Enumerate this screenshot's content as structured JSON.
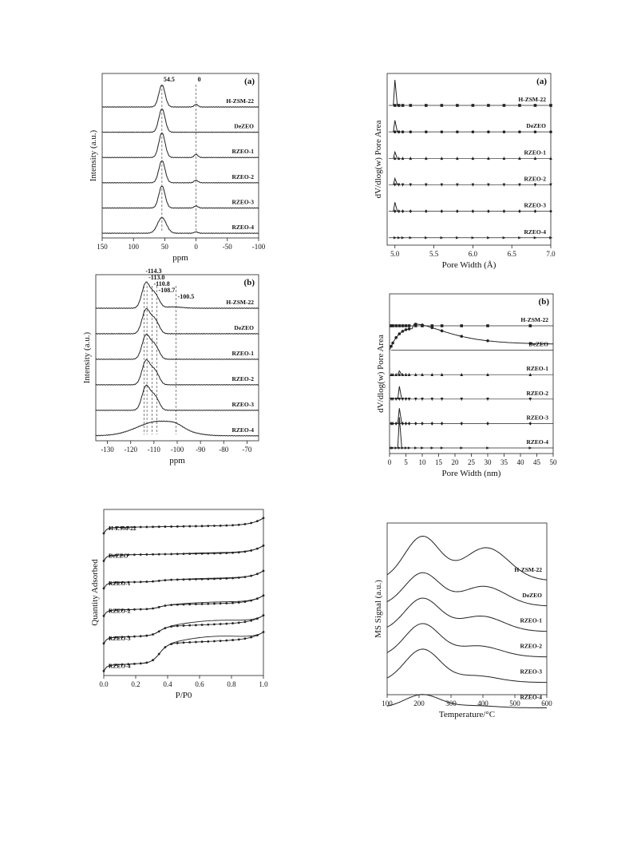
{
  "figure": {
    "panels": [
      {
        "id": "nmr-al",
        "type": "line",
        "panel_label": "(a)",
        "xlabel": "ppm",
        "ylabel": "Intensity (a.u.)",
        "x_reversed": true,
        "xlim": [
          150,
          -100
        ],
        "xticks": [
          "150",
          "100",
          "50",
          "0",
          "-50",
          "-100"
        ],
        "xtick_values": [
          150,
          100,
          50,
          0,
          -50,
          -100
        ],
        "annotations": [
          {
            "text": "54.5",
            "x": 54.5
          },
          {
            "text": "0",
            "x": 0
          }
        ],
        "dashed_lines": [
          54.5,
          0
        ],
        "series": [
          {
            "name": "H-ZSM-22",
            "peaks": [
              {
                "center": 54.5,
                "height": 0.85,
                "width": 5
              },
              {
                "center": 0,
                "height": 0.1,
                "width": 3
              }
            ]
          },
          {
            "name": "DeZEO",
            "peaks": [
              {
                "center": 54.5,
                "height": 0.9,
                "width": 5
              }
            ]
          },
          {
            "name": "RZEO-1",
            "peaks": [
              {
                "center": 54.5,
                "height": 0.95,
                "width": 5
              },
              {
                "center": 0,
                "height": 0.12,
                "width": 3
              }
            ]
          },
          {
            "name": "RZEO-2",
            "peaks": [
              {
                "center": 54.5,
                "height": 0.85,
                "width": 5
              },
              {
                "center": 0,
                "height": 0.1,
                "width": 3
              }
            ]
          },
          {
            "name": "RZEO-3",
            "peaks": [
              {
                "center": 54.5,
                "height": 0.85,
                "width": 5
              },
              {
                "center": 0,
                "height": 0.08,
                "width": 3
              }
            ]
          },
          {
            "name": "RZEO-4",
            "peaks": [
              {
                "center": 54.5,
                "height": 0.6,
                "width": 7
              },
              {
                "center": 0,
                "height": 0.05,
                "width": 3
              }
            ]
          }
        ]
      },
      {
        "id": "nmr-si",
        "type": "line",
        "panel_label": "(b)",
        "xlabel": "ppm",
        "ylabel": "Intensity (a.u.)",
        "x_reversed": true,
        "xlim": [
          -135,
          -65
        ],
        "xticks": [
          "-130",
          "-120",
          "-110",
          "-100",
          "-90",
          "-80",
          "-70"
        ],
        "xtick_values": [
          -130,
          -120,
          -110,
          -100,
          -90,
          -80,
          -70
        ],
        "annotations": [
          {
            "text": "-114.3",
            "x": -114.3
          },
          {
            "text": "-113.0",
            "x": -113.0
          },
          {
            "text": "-110.8",
            "x": -110.8
          },
          {
            "text": "-108.7",
            "x": -108.7
          },
          {
            "text": "-100.5",
            "x": -100.5
          }
        ],
        "dashed_lines": [
          -114.3,
          -113.0,
          -110.8,
          -108.7,
          -100.5
        ],
        "series": [
          {
            "name": "H-ZSM-22",
            "peaks": [
              {
                "center": -114.3,
                "height": 0.55,
                "width": 1.5
              },
              {
                "center": -113.0,
                "height": 0.45,
                "width": 1.3
              },
              {
                "center": -110.8,
                "height": 0.45,
                "width": 1.5
              },
              {
                "center": -108.7,
                "height": 0.3,
                "width": 1.5
              },
              {
                "center": -102,
                "height": 0.05,
                "width": 4
              }
            ]
          },
          {
            "name": "DeZEO",
            "peaks": [
              {
                "center": -114.3,
                "height": 0.5,
                "width": 1.5
              },
              {
                "center": -113.0,
                "height": 0.45,
                "width": 1.3
              },
              {
                "center": -110.8,
                "height": 0.45,
                "width": 1.5
              },
              {
                "center": -108.7,
                "height": 0.3,
                "width": 1.5
              }
            ]
          },
          {
            "name": "RZEO-1",
            "peaks": [
              {
                "center": -114.3,
                "height": 0.5,
                "width": 1.5
              },
              {
                "center": -113.0,
                "height": 0.45,
                "width": 1.3
              },
              {
                "center": -110.8,
                "height": 0.45,
                "width": 1.5
              },
              {
                "center": -108.7,
                "height": 0.3,
                "width": 1.5
              }
            ]
          },
          {
            "name": "RZEO-2",
            "peaks": [
              {
                "center": -114.3,
                "height": 0.5,
                "width": 1.5
              },
              {
                "center": -113.0,
                "height": 0.45,
                "width": 1.3
              },
              {
                "center": -110.8,
                "height": 0.45,
                "width": 1.5
              },
              {
                "center": -108.7,
                "height": 0.3,
                "width": 1.5
              }
            ]
          },
          {
            "name": "RZEO-3",
            "peaks": [
              {
                "center": -114.3,
                "height": 0.5,
                "width": 1.5
              },
              {
                "center": -113.0,
                "height": 0.45,
                "width": 1.3
              },
              {
                "center": -110.8,
                "height": 0.45,
                "width": 1.5
              },
              {
                "center": -108.7,
                "height": 0.3,
                "width": 1.5
              }
            ]
          },
          {
            "name": "RZEO-4",
            "peaks": [
              {
                "center": -108,
                "height": 0.55,
                "width": 9
              },
              {
                "center": -100.5,
                "height": 0.1,
                "width": 3
              }
            ]
          }
        ]
      },
      {
        "id": "isotherm",
        "type": "line",
        "panel_label": "",
        "xlabel": "P/P0",
        "ylabel": "Quantity Adsorbed",
        "xlim": [
          0,
          1
        ],
        "xticks": [
          "0.0",
          "0.2",
          "0.4",
          "0.6",
          "0.8",
          "1.0"
        ],
        "xtick_values": [
          0,
          0.2,
          0.4,
          0.6,
          0.8,
          1.0
        ],
        "series": [
          {
            "name": "H-ZSM-22",
            "step": 0.0,
            "hysteresis": 0.0,
            "slope": 0.08
          },
          {
            "name": "DeZEO",
            "step": 0.0,
            "hysteresis": 0.02,
            "slope": 0.08
          },
          {
            "name": "RZEO-1",
            "step": 0.05,
            "hysteresis": 0.02,
            "slope": 0.1
          },
          {
            "name": "RZEO-2",
            "step": 0.12,
            "hysteresis": 0.05,
            "slope": 0.12
          },
          {
            "name": "RZEO-3",
            "step": 0.28,
            "hysteresis": 0.12,
            "slope": 0.2
          },
          {
            "name": "RZEO-4",
            "step": 0.6,
            "hysteresis": 0.15,
            "slope": 0.22
          }
        ]
      },
      {
        "id": "pore-a",
        "type": "scatter",
        "panel_label": "(a)",
        "xlabel": "Pore Width (Å)",
        "ylabel": "dV/dlog(w) Pore Area",
        "xlim": [
          4.9,
          7.0
        ],
        "xticks": [
          "5.0",
          "5.5",
          "6.0",
          "6.5",
          "7.0"
        ],
        "xtick_values": [
          5.0,
          5.5,
          6.0,
          6.5,
          7.0
        ],
        "series": [
          {
            "name": "H-ZSM-22",
            "marker": "square",
            "spike": 1.0
          },
          {
            "name": "DeZEO",
            "marker": "circle",
            "spike": 0.45
          },
          {
            "name": "RZEO-1",
            "marker": "triangle",
            "spike": 0.25
          },
          {
            "name": "RZEO-2",
            "marker": "triangle-down",
            "spike": 0.25
          },
          {
            "name": "RZEO-3",
            "marker": "diamond",
            "spike": 0.35
          },
          {
            "name": "RZEO-4",
            "marker": "triangle-right",
            "spike": 0.0
          }
        ]
      },
      {
        "id": "pore-b",
        "type": "scatter",
        "panel_label": "(b)",
        "xlabel": "Pore Width (nm)",
        "ylabel": "dV/dlog(w) Pore Area",
        "xlim": [
          0,
          50
        ],
        "xticks": [
          "0",
          "5",
          "10",
          "15",
          "20",
          "25",
          "30",
          "35",
          "40",
          "45",
          "50"
        ],
        "xtick_values": [
          0,
          5,
          10,
          15,
          20,
          25,
          30,
          35,
          40,
          45,
          50
        ],
        "series": [
          {
            "name": "H-ZSM-22",
            "marker": "square",
            "spike": 0.0,
            "hump": 0.0
          },
          {
            "name": "DeZEO",
            "marker": "circle",
            "spike": 0.0,
            "hump": 1.0
          },
          {
            "name": "RZEO-1",
            "marker": "triangle",
            "spike": 0.15,
            "hump": 0.0
          },
          {
            "name": "RZEO-2",
            "marker": "triangle-down",
            "spike": 0.5,
            "hump": 0.0
          },
          {
            "name": "RZEO-3",
            "marker": "diamond",
            "spike": 0.6,
            "hump": 0.0
          },
          {
            "name": "RZEO-4",
            "marker": "triangle-right",
            "spike": 1.2,
            "hump": 0.0
          }
        ]
      },
      {
        "id": "tpd",
        "type": "line",
        "panel_label": "",
        "xlabel": "Temperature/°C",
        "ylabel": "MS Signal (a.u.)",
        "xlim": [
          100,
          600
        ],
        "xticks": [
          "100",
          "200",
          "300",
          "400",
          "500",
          "600"
        ],
        "xtick_values": [
          100,
          200,
          300,
          400,
          500,
          600
        ],
        "series": [
          {
            "name": "H-ZSM-22",
            "low_peak": 1.0,
            "high_peak": 0.75
          },
          {
            "name": "DeZEO",
            "low_peak": 0.75,
            "high_peak": 0.45
          },
          {
            "name": "RZEO-1",
            "low_peak": 0.75,
            "high_peak": 0.35
          },
          {
            "name": "RZEO-2",
            "low_peak": 0.75,
            "high_peak": 0.25
          },
          {
            "name": "RZEO-3",
            "low_peak": 0.75,
            "high_peak": 0.15
          },
          {
            "name": "RZEO-4",
            "low_peak": 0.3,
            "high_peak": 0.05
          }
        ]
      }
    ]
  },
  "chart_data": [
    {
      "type": "line",
      "title": "(a)",
      "xlabel": "ppm",
      "ylabel": "Intensity (a.u.)",
      "xlim": [
        150,
        -100
      ],
      "series": [
        {
          "name": "H-ZSM-22"
        },
        {
          "name": "DeZEO"
        },
        {
          "name": "RZEO-1"
        },
        {
          "name": "RZEO-2"
        },
        {
          "name": "RZEO-3"
        },
        {
          "name": "RZEO-4"
        }
      ],
      "annotations": [
        "54.5",
        "0"
      ]
    },
    {
      "type": "line",
      "title": "(b)",
      "xlabel": "ppm",
      "ylabel": "Intensity (a.u.)",
      "xlim": [
        -135,
        -65
      ],
      "series": [
        {
          "name": "H-ZSM-22"
        },
        {
          "name": "DeZEO"
        },
        {
          "name": "RZEO-1"
        },
        {
          "name": "RZEO-2"
        },
        {
          "name": "RZEO-3"
        },
        {
          "name": "RZEO-4"
        }
      ],
      "annotations": [
        "-114.3",
        "-113.0",
        "-110.8",
        "-108.7",
        "-100.5"
      ]
    },
    {
      "type": "line",
      "xlabel": "P/P0",
      "ylabel": "Quantity Adsorbed",
      "xlim": [
        0,
        1
      ],
      "series": [
        {
          "name": "H-ZSM-22"
        },
        {
          "name": "DeZEO"
        },
        {
          "name": "RZEO-1"
        },
        {
          "name": "RZEO-2"
        },
        {
          "name": "RZEO-3"
        },
        {
          "name": "RZEO-4"
        }
      ]
    },
    {
      "type": "scatter",
      "title": "(a)",
      "xlabel": "Pore Width (Å)",
      "ylabel": "dV/dlog(w) Pore Area",
      "xlim": [
        4.9,
        7.0
      ],
      "series": [
        {
          "name": "H-ZSM-22"
        },
        {
          "name": "DeZEO"
        },
        {
          "name": "RZEO-1"
        },
        {
          "name": "RZEO-2"
        },
        {
          "name": "RZEO-3"
        },
        {
          "name": "RZEO-4"
        }
      ]
    },
    {
      "type": "scatter",
      "title": "(b)",
      "xlabel": "Pore Width (nm)",
      "ylabel": "dV/dlog(w) Pore Area",
      "xlim": [
        0,
        50
      ],
      "series": [
        {
          "name": "H-ZSM-22"
        },
        {
          "name": "DeZEO"
        },
        {
          "name": "RZEO-1"
        },
        {
          "name": "RZEO-2"
        },
        {
          "name": "RZEO-3"
        },
        {
          "name": "RZEO-4"
        }
      ]
    },
    {
      "type": "line",
      "xlabel": "Temperature/°C",
      "ylabel": "MS Signal (a.u.)",
      "xlim": [
        100,
        600
      ],
      "series": [
        {
          "name": "H-ZSM-22",
          "peaks_C": [
            210,
            410
          ]
        },
        {
          "name": "DeZEO",
          "peaks_C": [
            210,
            400
          ]
        },
        {
          "name": "RZEO-1",
          "peaks_C": [
            210,
            390
          ]
        },
        {
          "name": "RZEO-2",
          "peaks_C": [
            210,
            380
          ]
        },
        {
          "name": "RZEO-3",
          "peaks_C": [
            210,
            370
          ]
        },
        {
          "name": "RZEO-4",
          "peaks_C": [
            210
          ]
        }
      ]
    }
  ]
}
